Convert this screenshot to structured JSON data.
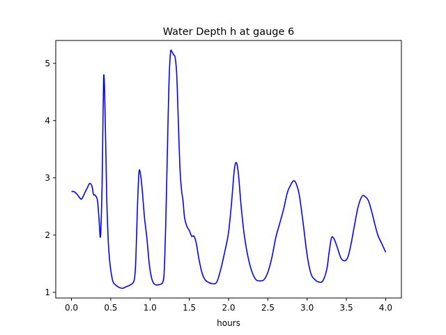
{
  "chart_data": {
    "type": "line",
    "title": "Water Depth h at gauge 6",
    "xlabel": "hours",
    "ylabel": "",
    "xlim": [
      -0.2,
      4.2
    ],
    "ylim": [
      0.9,
      5.4
    ],
    "xticks": [
      0.0,
      0.5,
      1.0,
      1.5,
      2.0,
      2.5,
      3.0,
      3.5,
      4.0
    ],
    "xtick_labels": [
      "0.0",
      "0.5",
      "1.0",
      "1.5",
      "2.0",
      "2.5",
      "3.0",
      "3.5",
      "4.0"
    ],
    "yticks": [
      1,
      2,
      3,
      4,
      5
    ],
    "ytick_labels": [
      "1",
      "2",
      "3",
      "4",
      "5"
    ],
    "grid": false,
    "series": [
      {
        "color": "#0000ff",
        "x": [
          0.0,
          0.03,
          0.06,
          0.1,
          0.13,
          0.17,
          0.2,
          0.23,
          0.26,
          0.28,
          0.3,
          0.33,
          0.35,
          0.37,
          0.39,
          0.4,
          0.41,
          0.42,
          0.43,
          0.44,
          0.45,
          0.47,
          0.49,
          0.51,
          0.53,
          0.56,
          0.6,
          0.65,
          0.7,
          0.75,
          0.8,
          0.82,
          0.84,
          0.86,
          0.88,
          0.9,
          0.93,
          0.96,
          0.99,
          1.02,
          1.05,
          1.08,
          1.1,
          1.13,
          1.16,
          1.18,
          1.2,
          1.22,
          1.24,
          1.26,
          1.28,
          1.3,
          1.32,
          1.34,
          1.36,
          1.38,
          1.4,
          1.42,
          1.44,
          1.47,
          1.5,
          1.53,
          1.56,
          1.59,
          1.62,
          1.66,
          1.7,
          1.75,
          1.8,
          1.85,
          1.9,
          1.95,
          2.0,
          2.04,
          2.07,
          2.09,
          2.11,
          2.13,
          2.16,
          2.2,
          2.25,
          2.3,
          2.35,
          2.4,
          2.45,
          2.5,
          2.55,
          2.6,
          2.65,
          2.7,
          2.75,
          2.8,
          2.83,
          2.86,
          2.9,
          2.95,
          3.0,
          3.05,
          3.1,
          3.15,
          3.2,
          3.25,
          3.28,
          3.31,
          3.34,
          3.38,
          3.43,
          3.48,
          3.52,
          3.56,
          3.6,
          3.65,
          3.7,
          3.74,
          3.78,
          3.82,
          3.86,
          3.9,
          3.95,
          4.0
        ],
        "y": [
          2.76,
          2.76,
          2.73,
          2.66,
          2.63,
          2.74,
          2.82,
          2.9,
          2.86,
          2.71,
          2.7,
          2.61,
          2.3,
          1.98,
          2.9,
          3.9,
          4.76,
          4.6,
          4.0,
          3.3,
          2.6,
          1.85,
          1.5,
          1.3,
          1.18,
          1.13,
          1.09,
          1.07,
          1.1,
          1.13,
          1.22,
          1.6,
          2.5,
          3.1,
          3.05,
          2.8,
          2.3,
          1.95,
          1.5,
          1.25,
          1.15,
          1.13,
          1.13,
          1.14,
          1.17,
          1.35,
          2.2,
          3.4,
          4.6,
          5.18,
          5.2,
          5.15,
          5.1,
          4.8,
          4.0,
          3.2,
          2.8,
          2.6,
          2.3,
          2.15,
          2.08,
          1.98,
          1.98,
          1.85,
          1.6,
          1.35,
          1.22,
          1.17,
          1.15,
          1.18,
          1.4,
          1.7,
          2.05,
          2.6,
          3.1,
          3.26,
          3.22,
          3.0,
          2.5,
          2.0,
          1.6,
          1.35,
          1.22,
          1.2,
          1.22,
          1.35,
          1.6,
          1.95,
          2.2,
          2.45,
          2.75,
          2.9,
          2.95,
          2.9,
          2.7,
          2.2,
          1.65,
          1.32,
          1.22,
          1.18,
          1.2,
          1.4,
          1.7,
          1.95,
          1.94,
          1.8,
          1.6,
          1.55,
          1.62,
          1.85,
          2.15,
          2.5,
          2.68,
          2.67,
          2.6,
          2.42,
          2.2,
          2.0,
          1.85,
          1.7
        ]
      }
    ]
  }
}
